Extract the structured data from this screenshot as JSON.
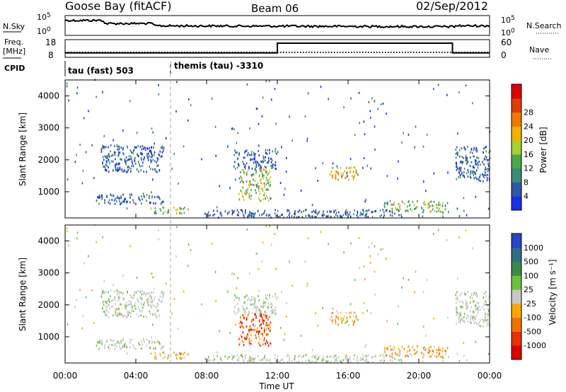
{
  "header": {
    "station": "Goose Bay (fitACF)",
    "beam": "Beam 06",
    "date": "02/Sep/2012"
  },
  "noise_panel": {
    "left_label": "N.Sky",
    "right_label": "N.Search",
    "tick_top": "10^5",
    "tick_bottom": "10^0"
  },
  "freq_panel": {
    "left_label_1": "Freq.",
    "left_label_2": "[MHz]",
    "left_tick_top": "18",
    "left_tick_bottom": "8",
    "right_label": "Nave",
    "right_tick_top": "60",
    "right_tick_bottom": "0"
  },
  "cpid_panel": {
    "label": "CPID",
    "mode_1": "tau (fast) 503",
    "mode_2": "themis (tau) -3310"
  },
  "axes": {
    "xlabel": "Time UT",
    "ylabel": "Slant Range [km]",
    "x_ticks": [
      "00:00",
      "04:00",
      "08:00",
      "12:00",
      "16:00",
      "20:00",
      "00:00"
    ],
    "y_ticks": [
      "1000",
      "2000",
      "3000",
      "4000"
    ]
  },
  "colorbars": {
    "power": {
      "label": "Power [dB]",
      "ticks": [
        "4",
        "8",
        "12",
        "16",
        "20",
        "24",
        "28"
      ],
      "colors": [
        "#1a2ee8",
        "#2f58a8",
        "#3a8a78",
        "#4aa84a",
        "#a7d030",
        "#f2b000",
        "#f07800",
        "#e23c00",
        "#e00000"
      ]
    },
    "velocity": {
      "label": "Velocity [m s⁻¹]",
      "ticks": [
        "1000",
        "500",
        "100",
        "25",
        "-25",
        "-100",
        "-500",
        "-1000"
      ],
      "colors": [
        "#2446c8",
        "#2f6c8a",
        "#3c8a4a",
        "#6cc23a",
        "#c8c8c8",
        "#ffa800",
        "#f07000",
        "#e83000",
        "#e00000"
      ]
    }
  },
  "chart_data": {
    "type": "heatmap",
    "x_range_hours": [
      0,
      24
    ],
    "y_range_km": [
      180,
      4500
    ],
    "grid": false,
    "separator_time": "06:00",
    "echo_regions": [
      {
        "t0": 2.0,
        "t1": 5.6,
        "r0": 1600,
        "r1": 2450,
        "power": "low",
        "velocity": "near-zero"
      },
      {
        "t0": 1.8,
        "t1": 5.6,
        "r0": 600,
        "r1": 900,
        "power": "low",
        "velocity": "near-zero"
      },
      {
        "t0": 4.8,
        "t1": 7.0,
        "r0": 280,
        "r1": 500,
        "power": "medium",
        "velocity": "negative"
      },
      {
        "t0": 9.5,
        "t1": 12.0,
        "r0": 1700,
        "r1": 2300,
        "power": "low",
        "velocity": "near-zero"
      },
      {
        "t0": 9.8,
        "t1": 11.6,
        "r0": 700,
        "r1": 1700,
        "power": "medium",
        "velocity": "strongly negative"
      },
      {
        "t0": 14.8,
        "t1": 16.5,
        "r0": 1350,
        "r1": 1750,
        "power": "high",
        "velocity": "negative"
      },
      {
        "t0": 18.0,
        "t1": 21.5,
        "r0": 350,
        "r1": 700,
        "power": "medium",
        "velocity": "negative"
      },
      {
        "t0": 22.0,
        "t1": 24.0,
        "r0": 1300,
        "r1": 2400,
        "power": "low",
        "velocity": "near-zero"
      },
      {
        "t0": 8.0,
        "t1": 19.0,
        "r0": 180,
        "r1": 420,
        "power": "low",
        "velocity": "near-zero"
      }
    ],
    "frequency_mhz": [
      {
        "t0": 0,
        "t1": 12.0,
        "value": 10.5
      },
      {
        "t0": 12.0,
        "t1": 21.9,
        "value": 16.0
      },
      {
        "t0": 21.9,
        "t1": 24,
        "value": 10.5
      }
    ]
  }
}
